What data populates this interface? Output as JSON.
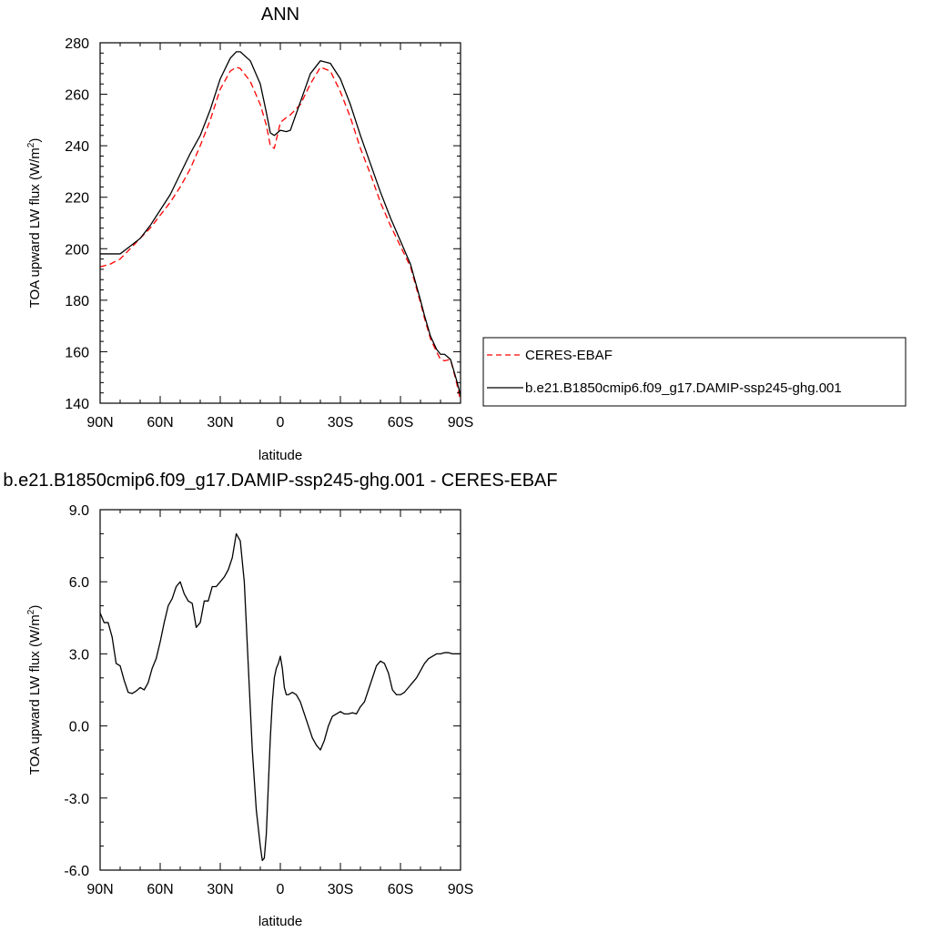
{
  "chart_data": [
    {
      "type": "line",
      "title": "ANN",
      "xlabel": "latitude",
      "ylabel": "TOA upward LW flux (W/m",
      "ylabel_sup": "2",
      "ylabel_end": ")",
      "xlim": [
        90,
        -90
      ],
      "ylim": [
        140,
        280
      ],
      "x_ticks": [
        90,
        60,
        30,
        0,
        -30,
        -60,
        -90
      ],
      "x_tick_labels": [
        "90N",
        "60N",
        "30N",
        "0",
        "30S",
        "60S",
        "90S"
      ],
      "y_ticks": [
        140,
        160,
        180,
        200,
        220,
        240,
        260,
        280
      ],
      "y_tick_labels": [
        "140",
        "160",
        "180",
        "200",
        "220",
        "240",
        "260",
        "280"
      ],
      "legend_position": "right",
      "series": [
        {
          "name": "CERES-EBAF",
          "color": "#ff0000",
          "dash": "dashed",
          "x": [
            90,
            85,
            80,
            75,
            70,
            65,
            60,
            55,
            50,
            45,
            40,
            35,
            30,
            25,
            22,
            20,
            15,
            10,
            7,
            5,
            3,
            0,
            -3,
            -5,
            -10,
            -15,
            -20,
            -25,
            -30,
            -35,
            -40,
            -45,
            -50,
            -55,
            -60,
            -65,
            -70,
            -72,
            -75,
            -78,
            -80,
            -82,
            -85,
            -88,
            -90
          ],
          "y": [
            193,
            194,
            196,
            200,
            204,
            208,
            213,
            218,
            224,
            231,
            240,
            250,
            262,
            269,
            270.5,
            270,
            265,
            256,
            248,
            240,
            239,
            249,
            251,
            252,
            256,
            264,
            270.5,
            269,
            261,
            251,
            239,
            229,
            218,
            209,
            201,
            193,
            179,
            173,
            165,
            160,
            157,
            156.5,
            157,
            148,
            141
          ]
        },
        {
          "name": "b.e21.B1850cmip6.f09_g17.DAMIP-ssp245-ghg.001",
          "color": "#000000",
          "dash": "solid",
          "x": [
            90,
            85,
            80,
            75,
            70,
            65,
            60,
            55,
            50,
            45,
            40,
            35,
            30,
            25,
            22,
            20,
            15,
            10,
            7,
            5,
            3,
            0,
            -3,
            -5,
            -10,
            -15,
            -20,
            -25,
            -30,
            -35,
            -40,
            -45,
            -50,
            -55,
            -60,
            -65,
            -70,
            -72,
            -75,
            -78,
            -80,
            -82,
            -85,
            -88,
            -90
          ],
          "y": [
            198,
            198,
            198,
            201,
            204,
            209,
            215,
            221,
            229,
            237,
            244,
            254,
            266,
            274,
            276.5,
            276.5,
            273,
            264,
            253,
            245,
            244,
            246,
            245.5,
            246,
            257,
            268,
            273,
            272,
            266,
            256,
            244,
            233,
            222,
            212,
            203,
            194,
            180,
            174,
            166,
            161,
            159,
            159,
            157,
            149,
            143
          ]
        }
      ]
    },
    {
      "type": "line",
      "title": "b.e21.B1850cmip6.f09_g17.DAMIP-ssp245-ghg.001 - CERES-EBAF",
      "xlabel": "latitude",
      "ylabel": "TOA upward LW flux (W/m",
      "ylabel_sup": "2",
      "ylabel_end": ")",
      "xlim": [
        90,
        -90
      ],
      "ylim": [
        -6,
        9
      ],
      "x_ticks": [
        90,
        60,
        30,
        0,
        -30,
        -60,
        -90
      ],
      "x_tick_labels": [
        "90N",
        "60N",
        "30N",
        "0",
        "30S",
        "60S",
        "90S"
      ],
      "y_ticks": [
        -6,
        -3,
        0,
        3,
        6,
        9
      ],
      "y_tick_labels": [
        "-6.0",
        "-3.0",
        "0.0",
        "3.0",
        "6.0",
        "9.0"
      ],
      "series": [
        {
          "color": "#000000",
          "dash": "solid",
          "x": [
            90,
            89,
            88,
            86,
            84,
            82,
            80,
            78,
            76,
            74,
            72,
            70,
            68,
            66,
            64,
            62,
            60,
            58,
            56,
            54,
            52,
            50,
            48,
            46,
            44,
            42,
            40,
            38,
            36,
            34,
            32,
            30,
            28,
            26,
            24,
            22,
            20,
            18,
            16,
            14,
            12,
            10,
            9,
            8,
            7,
            6,
            5,
            4,
            3,
            2,
            1,
            0,
            -1,
            -2,
            -3,
            -4,
            -6,
            -8,
            -10,
            -12,
            -14,
            -16,
            -18,
            -20,
            -22,
            -24,
            -26,
            -28,
            -30,
            -32,
            -34,
            -36,
            -38,
            -40,
            -42,
            -44,
            -46,
            -48,
            -50,
            -52,
            -54,
            -56,
            -58,
            -60,
            -62,
            -64,
            -66,
            -68,
            -70,
            -72,
            -74,
            -76,
            -78,
            -80,
            -82,
            -84,
            -86,
            -88,
            -90
          ],
          "y": [
            4.7,
            4.5,
            4.3,
            4.3,
            3.7,
            2.6,
            2.5,
            1.9,
            1.4,
            1.35,
            1.45,
            1.6,
            1.5,
            1.8,
            2.4,
            2.8,
            3.5,
            4.3,
            5.0,
            5.3,
            5.8,
            6.0,
            5.5,
            5.2,
            5.1,
            4.1,
            4.3,
            5.2,
            5.2,
            5.8,
            5.8,
            6.0,
            6.2,
            6.5,
            7.0,
            8.0,
            7.7,
            6.0,
            2.5,
            -1.0,
            -3.5,
            -5.0,
            -5.6,
            -5.5,
            -4.5,
            -2.5,
            -0.5,
            1.0,
            2.0,
            2.4,
            2.6,
            2.9,
            2.4,
            1.6,
            1.3,
            1.3,
            1.4,
            1.3,
            1.0,
            0.5,
            0.0,
            -0.5,
            -0.8,
            -1.0,
            -0.6,
            0.0,
            0.4,
            0.5,
            0.6,
            0.5,
            0.5,
            0.55,
            0.5,
            0.8,
            1.0,
            1.5,
            2.0,
            2.5,
            2.7,
            2.6,
            2.2,
            1.5,
            1.3,
            1.3,
            1.4,
            1.6,
            1.8,
            2.0,
            2.3,
            2.6,
            2.8,
            2.9,
            3.0,
            3.0,
            3.05,
            3.05,
            3.0,
            3.0,
            3.0
          ]
        }
      ]
    }
  ],
  "legend": {
    "items": [
      {
        "label": "CERES-EBAF",
        "color": "#ff0000",
        "dash": "dashed"
      },
      {
        "label": "b.e21.B1850cmip6.f09_g17.DAMIP-ssp245-ghg.001",
        "color": "#000000",
        "dash": "solid"
      }
    ]
  }
}
